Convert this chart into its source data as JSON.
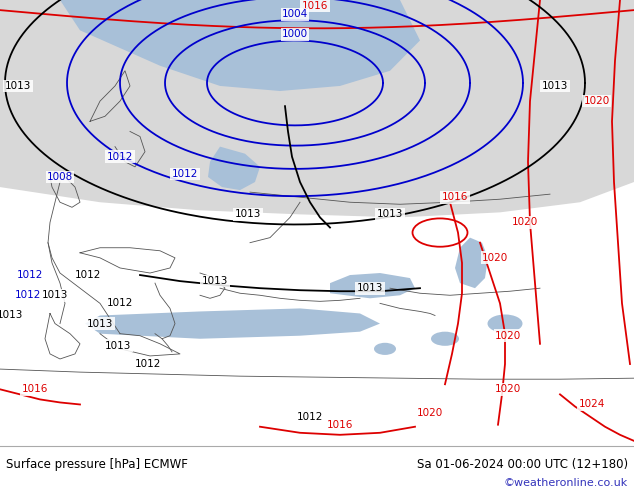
{
  "title_left": "Surface pressure [hPa] ECMWF",
  "title_right": "Sa 01-06-2024 00:00 UTC (12+180)",
  "watermark": "©weatheronline.co.uk",
  "fig_width": 6.34,
  "fig_height": 4.9,
  "dpi": 100,
  "map_bg": "#b8d8a0",
  "arctic_bg": "#d8d8d8",
  "sea_color": "#a8c0d8",
  "bottom_bg": "#ffffff",
  "isobar_red": "#dd0000",
  "isobar_blue": "#0000cc",
  "isobar_black": "#000000",
  "label_fontsize": 7.5,
  "bottom_left_text": "Surface pressure [hPa] ECMWF",
  "bottom_right_text": "Sa 01-06-2024 00:00 UTC (12+180)",
  "watermark_text": "©weatheronline.co.uk",
  "watermark_color": "#3333bb"
}
